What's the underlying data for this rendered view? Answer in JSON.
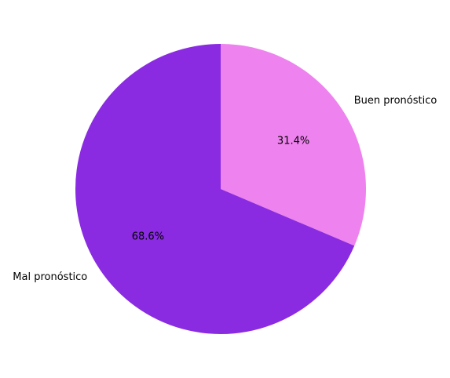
{
  "chart_data": {
    "type": "pie",
    "title": "",
    "slices": [
      {
        "label": "Buen pronóstico",
        "value": 31.4,
        "pct_label": "31.4%",
        "color": "#ee82ee"
      },
      {
        "label": "Mal pronóstico",
        "value": 68.6,
        "pct_label": "68.6%",
        "color": "#8a2be2"
      }
    ],
    "start_angle_deg": 90,
    "direction": "clockwise",
    "legend": "none"
  }
}
